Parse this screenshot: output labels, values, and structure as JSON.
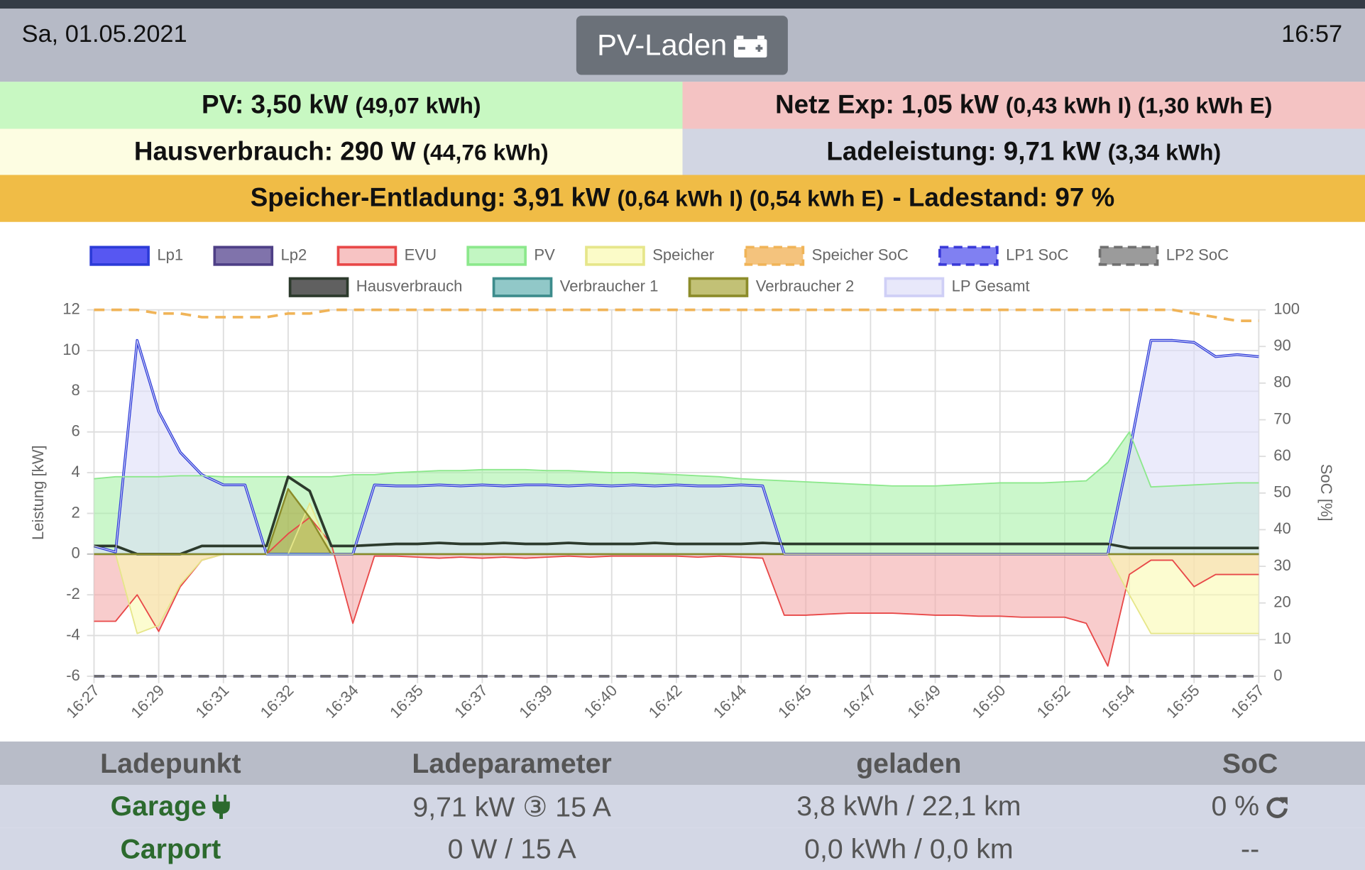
{
  "header": {
    "date": "Sa, 01.05.2021",
    "mode": "PV-Laden",
    "time": "16:57"
  },
  "status": {
    "pv": {
      "main": "PV: 3,50 kW",
      "detail": "(49,07 kWh)"
    },
    "grid": {
      "main": "Netz Exp: 1,05 kW",
      "detail": "(0,43 kWh I) (1,30 kWh E)"
    },
    "house": {
      "main": "Hausverbrauch: 290 W",
      "detail": "(44,76 kWh)"
    },
    "charge": {
      "main": "Ladeleistung: 9,71 kW",
      "detail": "(3,34 kWh)"
    },
    "storage": {
      "main": "Speicher-Entladung: 3,91 kW",
      "detail": "(0,64 kWh I) (0,54 kWh E)",
      "soc": "- Ladestand: 97 %"
    }
  },
  "chart_data": {
    "type": "line",
    "y_label": "Leistung [kW]",
    "y2_label": "SoC [%]",
    "ylim": [
      -6,
      12
    ],
    "yticks": [
      -6,
      -4,
      -2,
      0,
      2,
      4,
      6,
      8,
      10,
      12
    ],
    "y2lim": [
      0,
      100
    ],
    "y2ticks": [
      0,
      10,
      20,
      30,
      40,
      50,
      60,
      70,
      80,
      90,
      100
    ],
    "grid": true,
    "categories": [
      "16:27",
      null,
      null,
      "16:29",
      null,
      null,
      "16:31",
      null,
      null,
      "16:32",
      null,
      null,
      "16:34",
      null,
      null,
      "16:35",
      null,
      null,
      "16:37",
      null,
      null,
      "16:39",
      null,
      null,
      "16:40",
      null,
      null,
      "16:42",
      null,
      null,
      "16:44",
      null,
      null,
      "16:45",
      null,
      null,
      "16:47",
      null,
      null,
      "16:49",
      null,
      null,
      "16:50",
      null,
      null,
      "16:52",
      null,
      null,
      "16:54",
      null,
      null,
      "16:55",
      null,
      null,
      "16:57"
    ],
    "series": [
      {
        "name": "Lp1",
        "color": "#2c3bd8",
        "fill_color": "#3a3af0",
        "width": 3,
        "values": [
          0.4,
          0.1,
          10.5,
          7.0,
          5.0,
          3.9,
          3.4,
          3.4,
          0,
          0,
          0,
          0,
          0,
          3.4,
          3.35,
          3.35,
          3.4,
          3.35,
          3.4,
          3.35,
          3.4,
          3.4,
          3.35,
          3.4,
          3.35,
          3.4,
          3.35,
          3.4,
          3.35,
          3.35,
          3.4,
          3.35,
          0,
          0,
          0,
          0,
          0,
          0,
          0,
          0,
          0,
          0,
          0,
          0,
          0,
          0,
          0,
          0,
          5.0,
          10.5,
          10.5,
          10.4,
          9.7,
          9.8,
          9.7
        ]
      },
      {
        "name": "Lp2",
        "color": "#4e3f86",
        "fill_color": "#6a5a9c",
        "width": 2,
        "values": [
          0,
          0,
          0,
          0,
          0,
          0,
          0,
          0,
          0,
          0,
          0,
          0,
          0,
          0,
          0,
          0,
          0,
          0,
          0,
          0,
          0,
          0,
          0,
          0,
          0,
          0,
          0,
          0,
          0,
          0,
          0,
          0,
          0,
          0,
          0,
          0,
          0,
          0,
          0,
          0,
          0,
          0,
          0,
          0,
          0,
          0,
          0,
          0,
          0,
          0,
          0,
          0,
          0,
          0,
          0
        ]
      },
      {
        "name": "EVU",
        "color": "#e84848",
        "fill_color": "#f4aaaa",
        "width": 1.5,
        "fill": true,
        "values": [
          -3.3,
          -3.3,
          -2.0,
          -3.8,
          -1.6,
          -0.3,
          0,
          0,
          0,
          1.0,
          1.8,
          0.5,
          -3.4,
          -0.1,
          -0.1,
          -0.15,
          -0.2,
          -0.15,
          -0.2,
          -0.15,
          -0.2,
          -0.15,
          -0.1,
          -0.15,
          -0.1,
          -0.1,
          -0.1,
          -0.1,
          -0.15,
          -0.1,
          -0.15,
          -0.2,
          -3.0,
          -3.0,
          -2.95,
          -2.9,
          -2.9,
          -2.9,
          -2.95,
          -3.0,
          -3.0,
          -3.05,
          -3.05,
          -3.1,
          -3.1,
          -3.1,
          -3.4,
          -5.5,
          -1.0,
          -0.3,
          -0.3,
          -1.6,
          -1.0,
          -1.0,
          -1.0
        ]
      },
      {
        "name": "PV",
        "color": "#8ce88c",
        "fill_color": "#a8f2a8",
        "width": 1.5,
        "fill": true,
        "values": [
          3.7,
          3.8,
          3.8,
          3.8,
          3.85,
          3.85,
          3.8,
          3.8,
          3.8,
          3.8,
          3.8,
          3.8,
          3.9,
          3.9,
          4.0,
          4.05,
          4.1,
          4.1,
          4.15,
          4.15,
          4.15,
          4.1,
          4.1,
          4.05,
          4.0,
          4.0,
          3.95,
          3.9,
          3.85,
          3.8,
          3.7,
          3.65,
          3.6,
          3.55,
          3.5,
          3.45,
          3.4,
          3.35,
          3.35,
          3.35,
          3.4,
          3.45,
          3.5,
          3.5,
          3.5,
          3.55,
          3.6,
          4.5,
          6.0,
          3.3,
          3.35,
          3.4,
          3.45,
          3.5,
          3.5
        ]
      },
      {
        "name": "Speicher",
        "color": "#e6e68a",
        "fill_color": "#fafab0",
        "width": 1.5,
        "fill": true,
        "values": [
          0,
          0,
          -3.9,
          -3.5,
          -1.5,
          -0.3,
          0,
          0,
          0,
          0,
          2.5,
          0,
          0,
          0,
          0,
          0,
          0,
          0,
          0,
          0,
          0,
          0,
          0,
          0,
          0,
          0,
          0,
          0,
          0,
          0,
          0,
          0,
          0,
          0,
          0,
          0,
          0,
          0,
          0,
          0,
          0,
          0,
          0,
          0,
          0,
          0,
          0,
          0,
          -2.0,
          -3.9,
          -3.9,
          -3.9,
          -3.9,
          -3.9,
          -3.9
        ]
      },
      {
        "name": "Speicher SoC",
        "color": "#f0b458",
        "fill_color": "#f2b866",
        "width": 3,
        "dashed": true,
        "axis": "y2",
        "values": [
          100,
          100,
          100,
          99,
          99,
          98,
          98,
          98,
          98,
          99,
          99,
          100,
          100,
          100,
          100,
          100,
          100,
          100,
          100,
          100,
          100,
          100,
          100,
          100,
          100,
          100,
          100,
          100,
          100,
          100,
          100,
          100,
          100,
          100,
          100,
          100,
          100,
          100,
          100,
          100,
          100,
          100,
          100,
          100,
          100,
          100,
          100,
          100,
          100,
          100,
          100,
          99,
          98,
          97,
          97
        ]
      },
      {
        "name": "LP1 SoC",
        "color": "#3a3ad8",
        "fill_color": "#6a6af0",
        "width": 3,
        "dashed": true,
        "axis": "y2",
        "values": [
          0,
          0,
          0,
          0,
          0,
          0,
          0,
          0,
          0,
          0,
          0,
          0,
          0,
          0,
          0,
          0,
          0,
          0,
          0,
          0,
          0,
          0,
          0,
          0,
          0,
          0,
          0,
          0,
          0,
          0,
          0,
          0,
          0,
          0,
          0,
          0,
          0,
          0,
          0,
          0,
          0,
          0,
          0,
          0,
          0,
          0,
          0,
          0,
          0,
          0,
          0,
          0,
          0,
          0,
          0
        ]
      },
      {
        "name": "LP2 SoC",
        "color": "#707070",
        "fill_color": "#8a8a8a",
        "width": 3,
        "dashed": true,
        "axis": "y2",
        "values": [
          0,
          0,
          0,
          0,
          0,
          0,
          0,
          0,
          0,
          0,
          0,
          0,
          0,
          0,
          0,
          0,
          0,
          0,
          0,
          0,
          0,
          0,
          0,
          0,
          0,
          0,
          0,
          0,
          0,
          0,
          0,
          0,
          0,
          0,
          0,
          0,
          0,
          0,
          0,
          0,
          0,
          0,
          0,
          0,
          0,
          0,
          0,
          0,
          0,
          0,
          0,
          0,
          0,
          0,
          0
        ]
      },
      {
        "name": "Hausverbrauch",
        "color": "#2c3a2c",
        "fill_color": "#444444",
        "width": 3,
        "values": [
          0.4,
          0.4,
          0,
          0,
          0,
          0.4,
          0.4,
          0.4,
          0.4,
          3.8,
          3.1,
          0.4,
          0.4,
          0.45,
          0.5,
          0.5,
          0.55,
          0.5,
          0.5,
          0.55,
          0.5,
          0.5,
          0.55,
          0.5,
          0.5,
          0.5,
          0.55,
          0.5,
          0.5,
          0.5,
          0.5,
          0.55,
          0.5,
          0.5,
          0.5,
          0.5,
          0.5,
          0.5,
          0.5,
          0.5,
          0.5,
          0.5,
          0.5,
          0.5,
          0.5,
          0.5,
          0.5,
          0.5,
          0.3,
          0.3,
          0.3,
          0.3,
          0.3,
          0.3,
          0.3
        ]
      },
      {
        "name": "Verbraucher 1",
        "color": "#3d8c8c",
        "fill_color": "#62b0b0",
        "width": 2,
        "fill": true,
        "values": [
          0,
          0,
          0,
          0,
          0,
          0,
          0,
          0,
          0,
          0,
          0,
          0,
          0,
          0,
          0,
          0,
          0,
          0,
          0,
          0,
          0,
          0,
          0,
          0,
          0,
          0,
          0,
          0,
          0,
          0,
          0,
          0,
          0,
          0,
          0,
          0,
          0,
          0,
          0,
          0,
          0,
          0,
          0,
          0,
          0,
          0,
          0,
          0,
          0,
          0,
          0,
          0,
          0,
          0,
          0
        ]
      },
      {
        "name": "Verbraucher 2",
        "color": "#8c8c2a",
        "fill_color": "#a8a63c",
        "width": 2,
        "fill": true,
        "values": [
          0,
          0,
          0,
          0,
          0,
          0,
          0,
          0,
          0,
          3.2,
          1.8,
          0,
          0,
          0,
          0,
          0,
          0,
          0,
          0,
          0,
          0,
          0,
          0,
          0,
          0,
          0,
          0,
          0,
          0,
          0,
          0,
          0,
          0,
          0,
          0,
          0,
          0,
          0,
          0,
          0,
          0,
          0,
          0,
          0,
          0,
          0,
          0,
          0,
          0,
          0,
          0,
          0,
          0,
          0,
          0
        ]
      },
      {
        "name": "LP Gesamt",
        "color": "#cfcff6",
        "fill_color": "#dedef8",
        "width": 1,
        "fill": true,
        "values": [
          0.4,
          0.1,
          10.5,
          7.0,
          5.0,
          3.9,
          3.4,
          3.4,
          0,
          0,
          0,
          0,
          0,
          3.4,
          3.35,
          3.35,
          3.4,
          3.35,
          3.4,
          3.35,
          3.4,
          3.4,
          3.35,
          3.4,
          3.35,
          3.4,
          3.35,
          3.4,
          3.35,
          3.35,
          3.4,
          3.35,
          0,
          0,
          0,
          0,
          0,
          0,
          0,
          0,
          0,
          0,
          0,
          0,
          0,
          0,
          0,
          0,
          5.0,
          10.5,
          10.5,
          10.4,
          9.7,
          9.8,
          9.7
        ]
      }
    ]
  },
  "table": {
    "headers": [
      "Ladepunkt",
      "Ladeparameter",
      "geladen",
      "SoC"
    ],
    "rows": [
      [
        "Garage",
        "9,71 kW ③ 15 A",
        "3,8 kWh / 22,1 km",
        "0 %"
      ],
      [
        "Carport",
        "0 W / 15 A",
        "0,0 kWh / 0,0 km",
        "--"
      ]
    ]
  }
}
